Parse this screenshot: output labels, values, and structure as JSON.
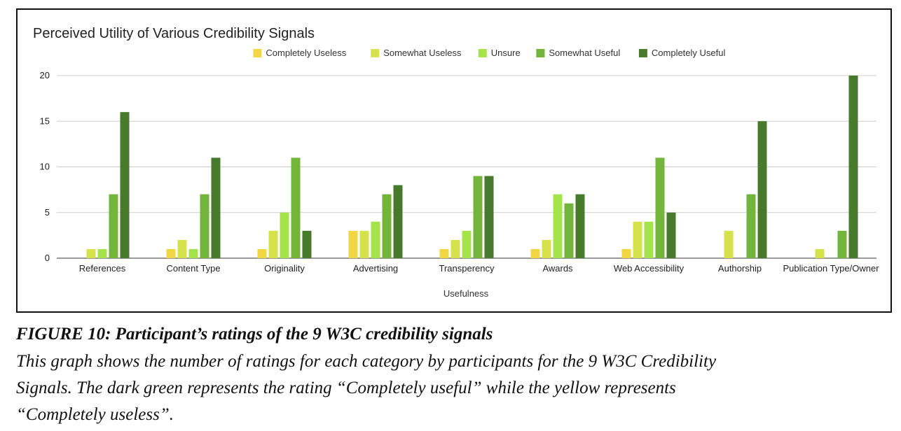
{
  "chart_data": {
    "type": "bar",
    "title": "Perceived Utility of Various Credibility Signals",
    "xlabel": "Usefulness",
    "ylabel": "",
    "ylim": [
      0,
      20
    ],
    "yticks": [
      0,
      5,
      10,
      15,
      20
    ],
    "legend_position": "top-center",
    "categories": [
      "References",
      "Content Type",
      "Originality",
      "Advertising",
      "Transperency",
      "Awards",
      "Web Accessibility",
      "Authorship",
      "Publication Type/Owner"
    ],
    "series": [
      {
        "name": "Completely Useless",
        "color": "#f2d744",
        "values": [
          0,
          1,
          1,
          3,
          1,
          1,
          1,
          0,
          0
        ]
      },
      {
        "name": "Somewhat Useless",
        "color": "#d5e24c",
        "values": [
          1,
          2,
          3,
          3,
          2,
          2,
          4,
          3,
          1
        ]
      },
      {
        "name": "Unsure",
        "color": "#a5e34a",
        "values": [
          1,
          1,
          5,
          4,
          3,
          7,
          4,
          0,
          0
        ]
      },
      {
        "name": "Somewhat Useful",
        "color": "#72b53a",
        "values": [
          7,
          7,
          11,
          7,
          9,
          6,
          11,
          7,
          3
        ]
      },
      {
        "name": "Completely Useful",
        "color": "#477a2b",
        "values": [
          16,
          11,
          3,
          8,
          9,
          7,
          5,
          15,
          20
        ]
      }
    ]
  },
  "caption": {
    "title": "FIGURE 10: Participant’s ratings of the 9 W3C credibility signals",
    "line1": "This graph shows the number of ratings for each category by participants for the 9 W3C Credibility",
    "line2": "Signals. The dark green represents the rating “Completely useful” while the yellow represents",
    "line3": "“Completely useless”."
  }
}
